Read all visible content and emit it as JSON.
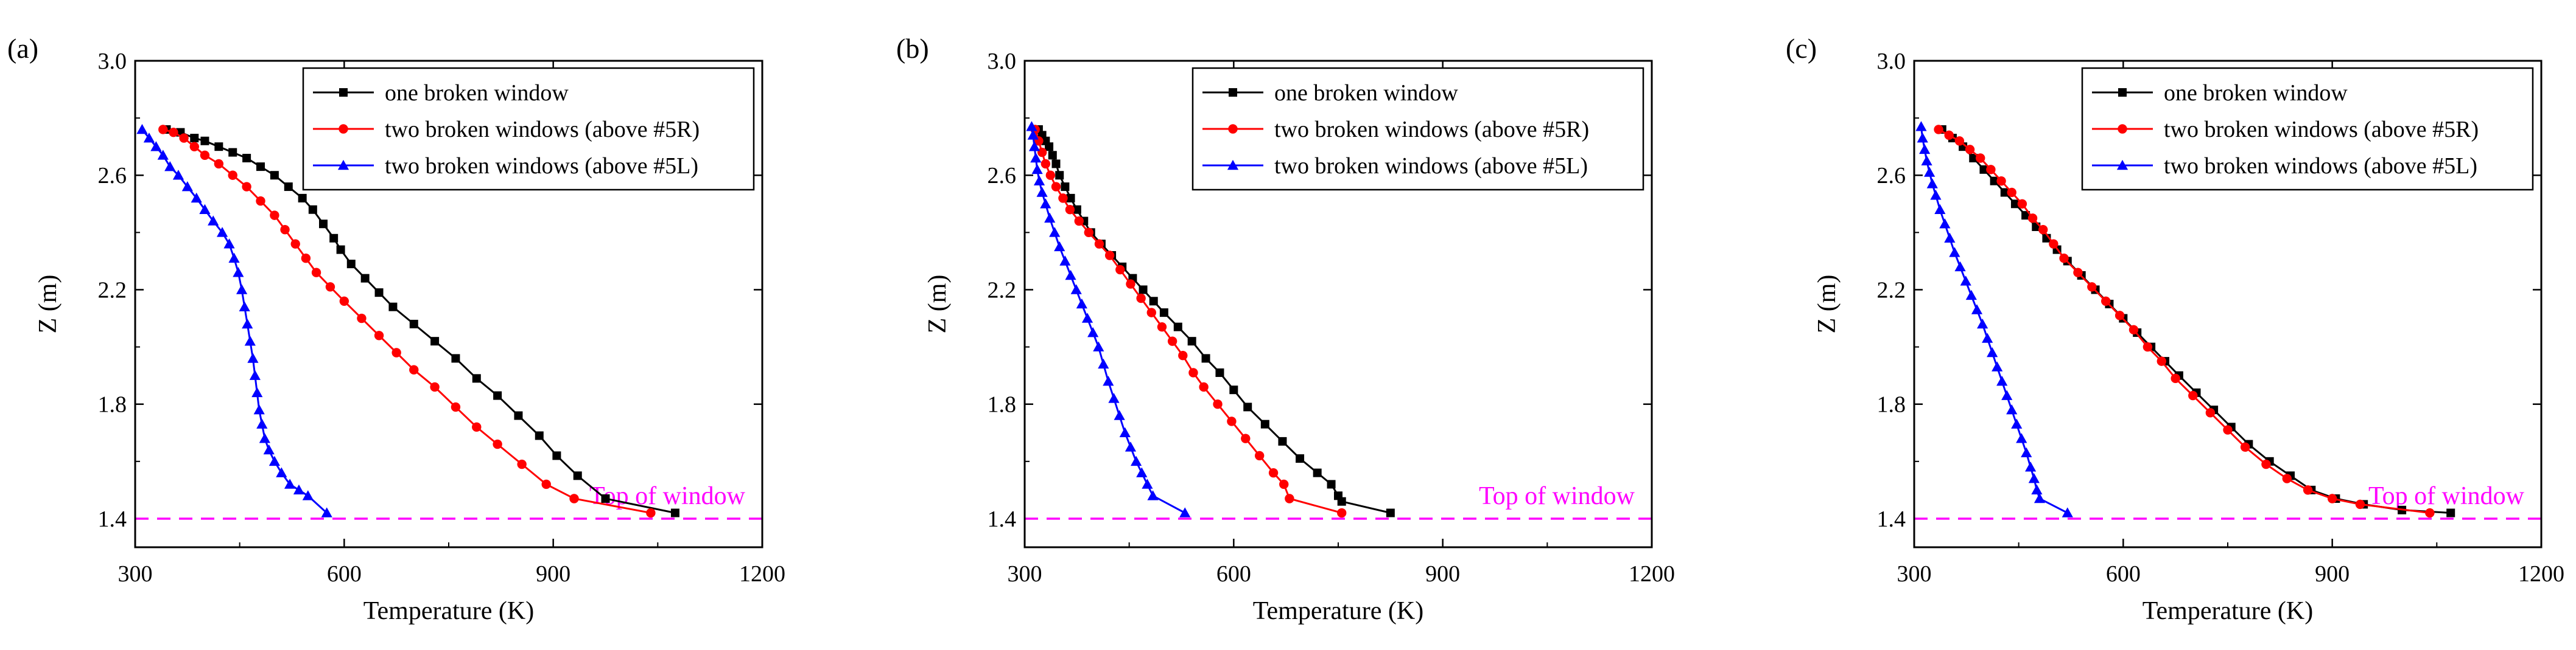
{
  "chart_data": [
    {
      "panel_label": "(a)",
      "type": "line",
      "xlabel": "Temperature (K)",
      "ylabel": "Z (m)",
      "xlim": [
        300,
        1200
      ],
      "ylim": [
        1.3,
        3.0
      ],
      "xticks": [
        300,
        600,
        900,
        1200
      ],
      "yticks": [
        1.4,
        1.8,
        2.2,
        2.6,
        3.0
      ],
      "tick_labels_x": [
        "300",
        "600",
        "900",
        "1200"
      ],
      "tick_labels_y": [
        "1.4",
        "1.8",
        "2.2",
        "2.6",
        "3.0"
      ],
      "grid": false,
      "legend_position": "top-right",
      "reference_line": {
        "y": 1.4,
        "label": "Top of window",
        "color": "#ff00ff"
      },
      "series": [
        {
          "name": "one broken window",
          "color": "#000000",
          "marker": "square",
          "x": [
            345,
            365,
            385,
            400,
            420,
            440,
            460,
            480,
            500,
            520,
            540,
            555,
            570,
            585,
            595,
            610,
            630,
            650,
            670,
            700,
            730,
            760,
            790,
            820,
            850,
            880,
            905,
            935,
            975,
            1075
          ],
          "y": [
            2.76,
            2.75,
            2.73,
            2.72,
            2.7,
            2.68,
            2.66,
            2.63,
            2.6,
            2.56,
            2.52,
            2.48,
            2.43,
            2.38,
            2.34,
            2.29,
            2.24,
            2.19,
            2.14,
            2.08,
            2.02,
            1.96,
            1.89,
            1.83,
            1.76,
            1.69,
            1.62,
            1.55,
            1.47,
            1.42
          ]
        },
        {
          "name": "two broken windows (above #5R)",
          "color": "#ff0000",
          "marker": "circle",
          "x": [
            340,
            355,
            370,
            385,
            400,
            420,
            440,
            460,
            480,
            500,
            515,
            530,
            545,
            560,
            580,
            600,
            625,
            650,
            675,
            700,
            730,
            760,
            790,
            820,
            855,
            890,
            930,
            1040
          ],
          "y": [
            2.76,
            2.75,
            2.73,
            2.7,
            2.67,
            2.64,
            2.6,
            2.56,
            2.51,
            2.46,
            2.41,
            2.36,
            2.31,
            2.26,
            2.21,
            2.16,
            2.1,
            2.04,
            1.98,
            1.92,
            1.86,
            1.79,
            1.72,
            1.66,
            1.59,
            1.52,
            1.47,
            1.42
          ]
        },
        {
          "name": "two broken windows (above #5L)",
          "color": "#0000ff",
          "marker": "triangle",
          "x": [
            310,
            320,
            330,
            340,
            350,
            362,
            375,
            388,
            400,
            412,
            425,
            435,
            442,
            448,
            453,
            457,
            461,
            465,
            469,
            472,
            475,
            478,
            482,
            486,
            492,
            500,
            510,
            522,
            535,
            548,
            575
          ],
          "y": [
            2.76,
            2.73,
            2.7,
            2.67,
            2.63,
            2.6,
            2.56,
            2.52,
            2.48,
            2.44,
            2.4,
            2.36,
            2.31,
            2.26,
            2.2,
            2.14,
            2.08,
            2.02,
            1.96,
            1.9,
            1.84,
            1.78,
            1.73,
            1.68,
            1.64,
            1.6,
            1.56,
            1.52,
            1.5,
            1.48,
            1.42
          ]
        }
      ]
    },
    {
      "panel_label": "(b)",
      "type": "line",
      "xlabel": "Temperature (K)",
      "ylabel": "Z (m)",
      "xlim": [
        300,
        1200
      ],
      "ylim": [
        1.3,
        3.0
      ],
      "xticks": [
        300,
        600,
        900,
        1200
      ],
      "yticks": [
        1.4,
        1.8,
        2.2,
        2.6,
        3.0
      ],
      "tick_labels_x": [
        "300",
        "600",
        "900",
        "1200"
      ],
      "tick_labels_y": [
        "1.4",
        "1.8",
        "2.2",
        "2.6",
        "3.0"
      ],
      "grid": false,
      "legend_position": "top-right",
      "reference_line": {
        "y": 1.4,
        "label": "Top of window",
        "color": "#ff00ff"
      },
      "series": [
        {
          "name": "one broken window",
          "color": "#000000",
          "marker": "square",
          "x": [
            320,
            325,
            330,
            335,
            340,
            345,
            350,
            358,
            366,
            375,
            385,
            395,
            410,
            425,
            440,
            455,
            470,
            485,
            500,
            520,
            540,
            560,
            580,
            600,
            620,
            645,
            670,
            695,
            720,
            740,
            750,
            755,
            825
          ],
          "y": [
            2.76,
            2.74,
            2.72,
            2.7,
            2.67,
            2.64,
            2.6,
            2.56,
            2.52,
            2.48,
            2.44,
            2.4,
            2.36,
            2.32,
            2.28,
            2.24,
            2.2,
            2.16,
            2.12,
            2.07,
            2.02,
            1.96,
            1.91,
            1.85,
            1.79,
            1.73,
            1.67,
            1.61,
            1.56,
            1.52,
            1.48,
            1.46,
            1.42
          ]
        },
        {
          "name": "two broken windows (above #5R)",
          "color": "#ff0000",
          "marker": "circle",
          "x": [
            315,
            320,
            325,
            330,
            337,
            345,
            355,
            365,
            378,
            392,
            407,
            422,
            437,
            452,
            467,
            482,
            497,
            512,
            527,
            542,
            557,
            577,
            597,
            617,
            637,
            657,
            672,
            680,
            755
          ],
          "y": [
            2.76,
            2.72,
            2.68,
            2.64,
            2.6,
            2.56,
            2.52,
            2.48,
            2.44,
            2.4,
            2.36,
            2.32,
            2.27,
            2.22,
            2.17,
            2.12,
            2.07,
            2.02,
            1.97,
            1.91,
            1.86,
            1.8,
            1.74,
            1.68,
            1.62,
            1.56,
            1.52,
            1.47,
            1.42
          ]
        },
        {
          "name": "two broken windows (above #5L)",
          "color": "#0000ff",
          "marker": "triangle",
          "x": [
            310,
            312,
            314,
            316,
            318,
            321,
            325,
            330,
            336,
            343,
            350,
            358,
            366,
            374,
            382,
            390,
            398,
            406,
            413,
            420,
            428,
            436,
            444,
            452,
            460,
            468,
            476,
            484,
            530
          ],
          "y": [
            2.77,
            2.74,
            2.7,
            2.66,
            2.62,
            2.58,
            2.54,
            2.5,
            2.45,
            2.4,
            2.35,
            2.3,
            2.25,
            2.2,
            2.15,
            2.1,
            2.05,
            2.0,
            1.94,
            1.88,
            1.82,
            1.76,
            1.7,
            1.65,
            1.6,
            1.56,
            1.52,
            1.48,
            1.42
          ]
        }
      ]
    },
    {
      "panel_label": "(c)",
      "type": "line",
      "xlabel": "Temperature (K)",
      "ylabel": "Z (m)",
      "xlim": [
        300,
        1200
      ],
      "ylim": [
        1.3,
        3.0
      ],
      "xticks": [
        300,
        600,
        900,
        1200
      ],
      "yticks": [
        1.4,
        1.8,
        2.2,
        2.6,
        3.0
      ],
      "tick_labels_x": [
        "300",
        "600",
        "900",
        "1200"
      ],
      "tick_labels_y": [
        "1.4",
        "1.8",
        "2.2",
        "2.6",
        "3.0"
      ],
      "grid": false,
      "legend_position": "top-right",
      "reference_line": {
        "y": 1.4,
        "label": "Top of window",
        "color": "#ff00ff"
      },
      "series": [
        {
          "name": "one broken window",
          "color": "#000000",
          "marker": "square",
          "x": [
            340,
            355,
            370,
            385,
            400,
            415,
            430,
            445,
            460,
            475,
            490,
            505,
            520,
            540,
            560,
            580,
            600,
            620,
            640,
            660,
            680,
            705,
            730,
            755,
            780,
            810,
            840,
            870,
            905,
            945,
            1000,
            1070
          ],
          "y": [
            2.76,
            2.73,
            2.7,
            2.66,
            2.62,
            2.58,
            2.54,
            2.5,
            2.46,
            2.42,
            2.38,
            2.34,
            2.3,
            2.25,
            2.2,
            2.15,
            2.1,
            2.05,
            2.0,
            1.95,
            1.9,
            1.84,
            1.78,
            1.72,
            1.66,
            1.6,
            1.55,
            1.5,
            1.47,
            1.45,
            1.43,
            1.42
          ]
        },
        {
          "name": "two broken windows (above #5R)",
          "color": "#ff0000",
          "marker": "circle",
          "x": [
            335,
            350,
            365,
            380,
            395,
            410,
            425,
            440,
            455,
            470,
            485,
            500,
            515,
            535,
            555,
            575,
            595,
            615,
            635,
            655,
            675,
            700,
            725,
            750,
            775,
            805,
            835,
            865,
            900,
            940,
            1040
          ],
          "y": [
            2.76,
            2.74,
            2.72,
            2.69,
            2.66,
            2.62,
            2.58,
            2.54,
            2.5,
            2.45,
            2.41,
            2.36,
            2.31,
            2.26,
            2.21,
            2.16,
            2.11,
            2.06,
            2.0,
            1.95,
            1.89,
            1.83,
            1.77,
            1.71,
            1.65,
            1.59,
            1.54,
            1.5,
            1.47,
            1.45,
            1.42
          ]
        },
        {
          "name": "two broken windows (above #5L)",
          "color": "#0000ff",
          "marker": "triangle",
          "x": [
            310,
            312,
            315,
            318,
            322,
            326,
            331,
            337,
            344,
            351,
            358,
            366,
            374,
            382,
            390,
            398,
            405,
            412,
            419,
            426,
            433,
            440,
            447,
            454,
            461,
            467,
            472,
            476,
            480,
            520
          ],
          "y": [
            2.77,
            2.73,
            2.69,
            2.65,
            2.61,
            2.57,
            2.53,
            2.48,
            2.43,
            2.38,
            2.33,
            2.28,
            2.23,
            2.18,
            2.13,
            2.08,
            2.03,
            1.98,
            1.93,
            1.88,
            1.83,
            1.78,
            1.73,
            1.68,
            1.63,
            1.58,
            1.54,
            1.5,
            1.47,
            1.42
          ]
        }
      ]
    }
  ]
}
